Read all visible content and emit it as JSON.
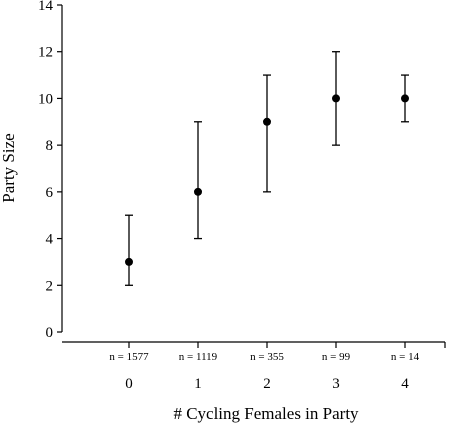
{
  "chart_data": {
    "type": "scatter",
    "title": "",
    "xlabel": "# Cycling Females in Party",
    "ylabel": "Party Size",
    "ylim": [
      0,
      14
    ],
    "yticks": [
      0,
      2,
      4,
      6,
      8,
      10,
      12,
      14
    ],
    "categories": [
      "0",
      "1",
      "2",
      "3",
      "4"
    ],
    "sample_sizes": [
      "n = 1577",
      "n = 1119",
      "n = 355",
      "n = 99",
      "n = 14"
    ],
    "values": [
      3,
      6,
      9,
      10,
      10
    ],
    "lower": [
      2,
      4,
      6,
      8,
      9
    ],
    "upper": [
      5,
      9,
      11,
      12,
      11
    ],
    "grid": false,
    "legend": "none"
  }
}
